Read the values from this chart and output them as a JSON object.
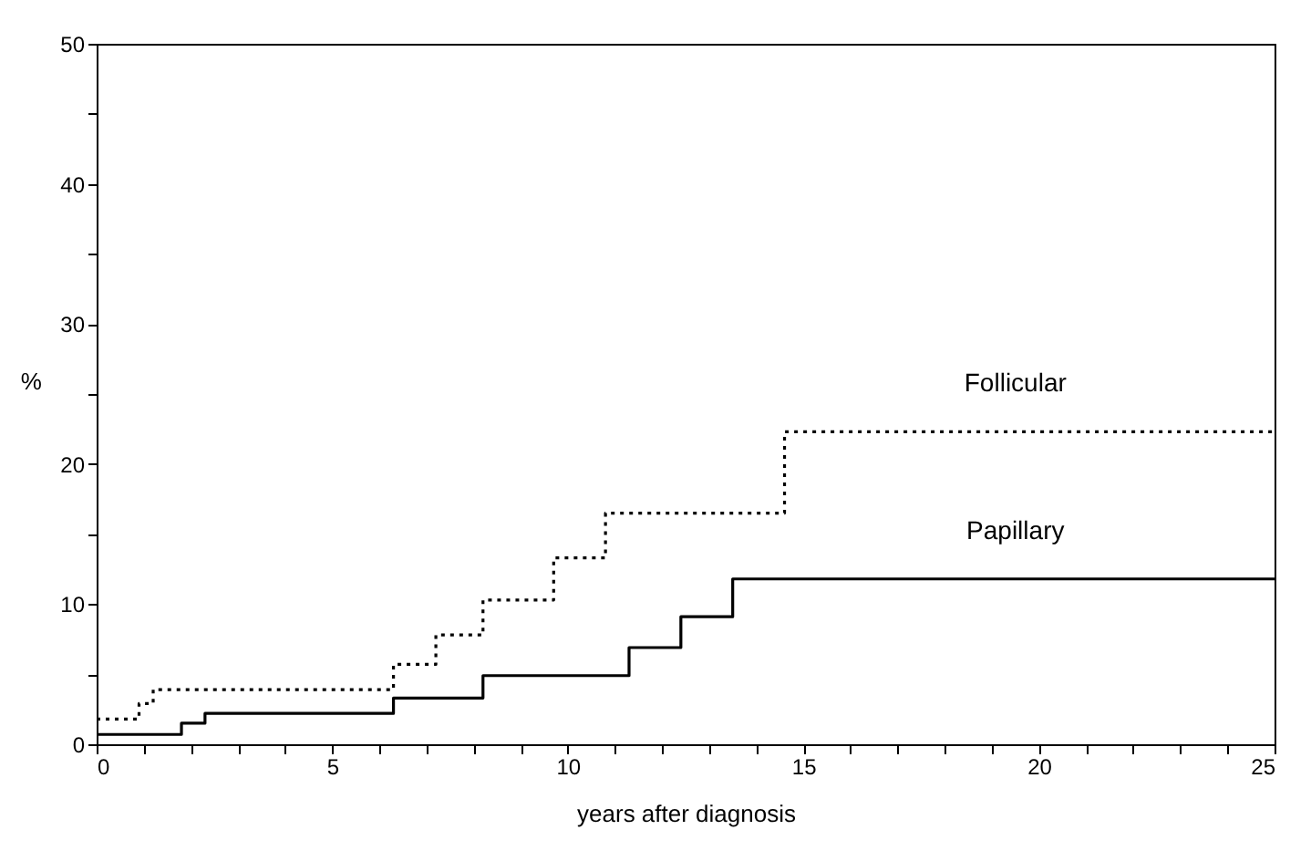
{
  "chart_data": {
    "type": "step",
    "xlabel": "years after diagnosis",
    "ylabel": "%",
    "xlim": [
      0,
      25
    ],
    "ylim": [
      0,
      50
    ],
    "xticks": [
      0,
      {
        "value": 1,
        "label": null
      },
      {
        "value": 2,
        "label": null
      },
      {
        "value": 3,
        "label": null
      },
      {
        "value": 4,
        "label": null
      },
      5,
      {
        "value": 6,
        "label": null
      },
      {
        "value": 7,
        "label": null
      },
      {
        "value": 8,
        "label": null
      },
      {
        "value": 9,
        "label": null
      },
      10,
      {
        "value": 11,
        "label": null
      },
      {
        "value": 12,
        "label": null
      },
      {
        "value": 13,
        "label": null
      },
      {
        "value": 14,
        "label": null
      },
      15,
      {
        "value": 16,
        "label": null
      },
      {
        "value": 17,
        "label": null
      },
      {
        "value": 18,
        "label": null
      },
      {
        "value": 19,
        "label": null
      },
      20,
      {
        "value": 21,
        "label": null
      },
      {
        "value": 22,
        "label": null
      },
      {
        "value": 23,
        "label": null
      },
      {
        "value": 24,
        "label": null
      },
      25
    ],
    "yticks": [
      0,
      {
        "value": 5,
        "label": null
      },
      10,
      {
        "value": 15,
        "label": null
      },
      20,
      {
        "value": 25,
        "label": null
      },
      30,
      {
        "value": 35,
        "label": null
      },
      40,
      {
        "value": 45,
        "label": null
      },
      50
    ],
    "grid": false,
    "series": [
      {
        "name": "Follicular",
        "color": "#000000",
        "line_style": "dotted",
        "x": [
          0,
          0.9,
          1.2,
          6.3,
          7.2,
          8.2,
          9.7,
          10.8,
          14.6,
          25
        ],
        "values": [
          1.8,
          2.9,
          3.9,
          5.7,
          7.8,
          10.3,
          13.3,
          16.5,
          22.3,
          22.3
        ]
      },
      {
        "name": "Papillary",
        "color": "#000000",
        "line_style": "solid",
        "x": [
          0,
          1.8,
          2.3,
          6.3,
          8.2,
          11.3,
          12.4,
          13.5,
          25
        ],
        "values": [
          0.7,
          1.5,
          2.2,
          3.3,
          4.9,
          6.9,
          9.1,
          11.8,
          11.8
        ]
      }
    ]
  }
}
